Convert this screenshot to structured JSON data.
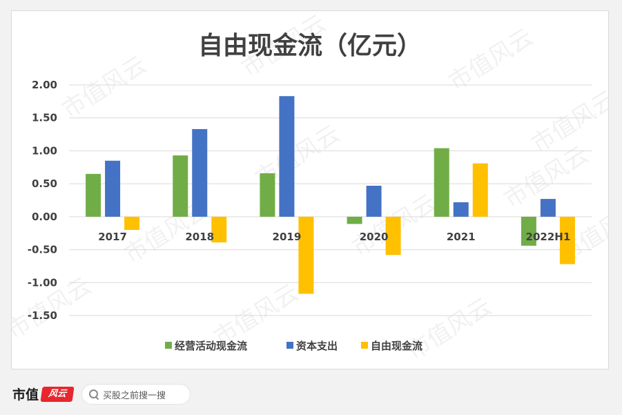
{
  "chart_data": {
    "type": "bar",
    "title": "自由现金流（亿元）",
    "categories": [
      "2017",
      "2018",
      "2019",
      "2020",
      "2021",
      "2022H1"
    ],
    "series": [
      {
        "name": "经营活动现金流",
        "color": "#70ad47",
        "values": [
          0.65,
          0.93,
          0.66,
          -0.11,
          1.04,
          -0.44
        ]
      },
      {
        "name": "资本支出",
        "color": "#4472c4",
        "values": [
          0.85,
          1.33,
          1.83,
          0.47,
          0.22,
          0.27
        ]
      },
      {
        "name": "自由现金流",
        "color": "#ffc000",
        "values": [
          -0.2,
          -0.39,
          -1.17,
          -0.58,
          0.81,
          -0.72
        ]
      }
    ],
    "yticks": [
      "2.00",
      "1.50",
      "1.00",
      "0.50",
      "0.00",
      "-0.50",
      "-1.00",
      "-1.50"
    ],
    "ylim": [
      -1.5,
      2.0
    ],
    "grid": true,
    "legend_position": "bottom"
  },
  "footer": {
    "brand": "市值",
    "brand_logo_text": "风云",
    "search_placeholder": "买股之前搜一搜"
  },
  "watermark_text": "市值风云"
}
